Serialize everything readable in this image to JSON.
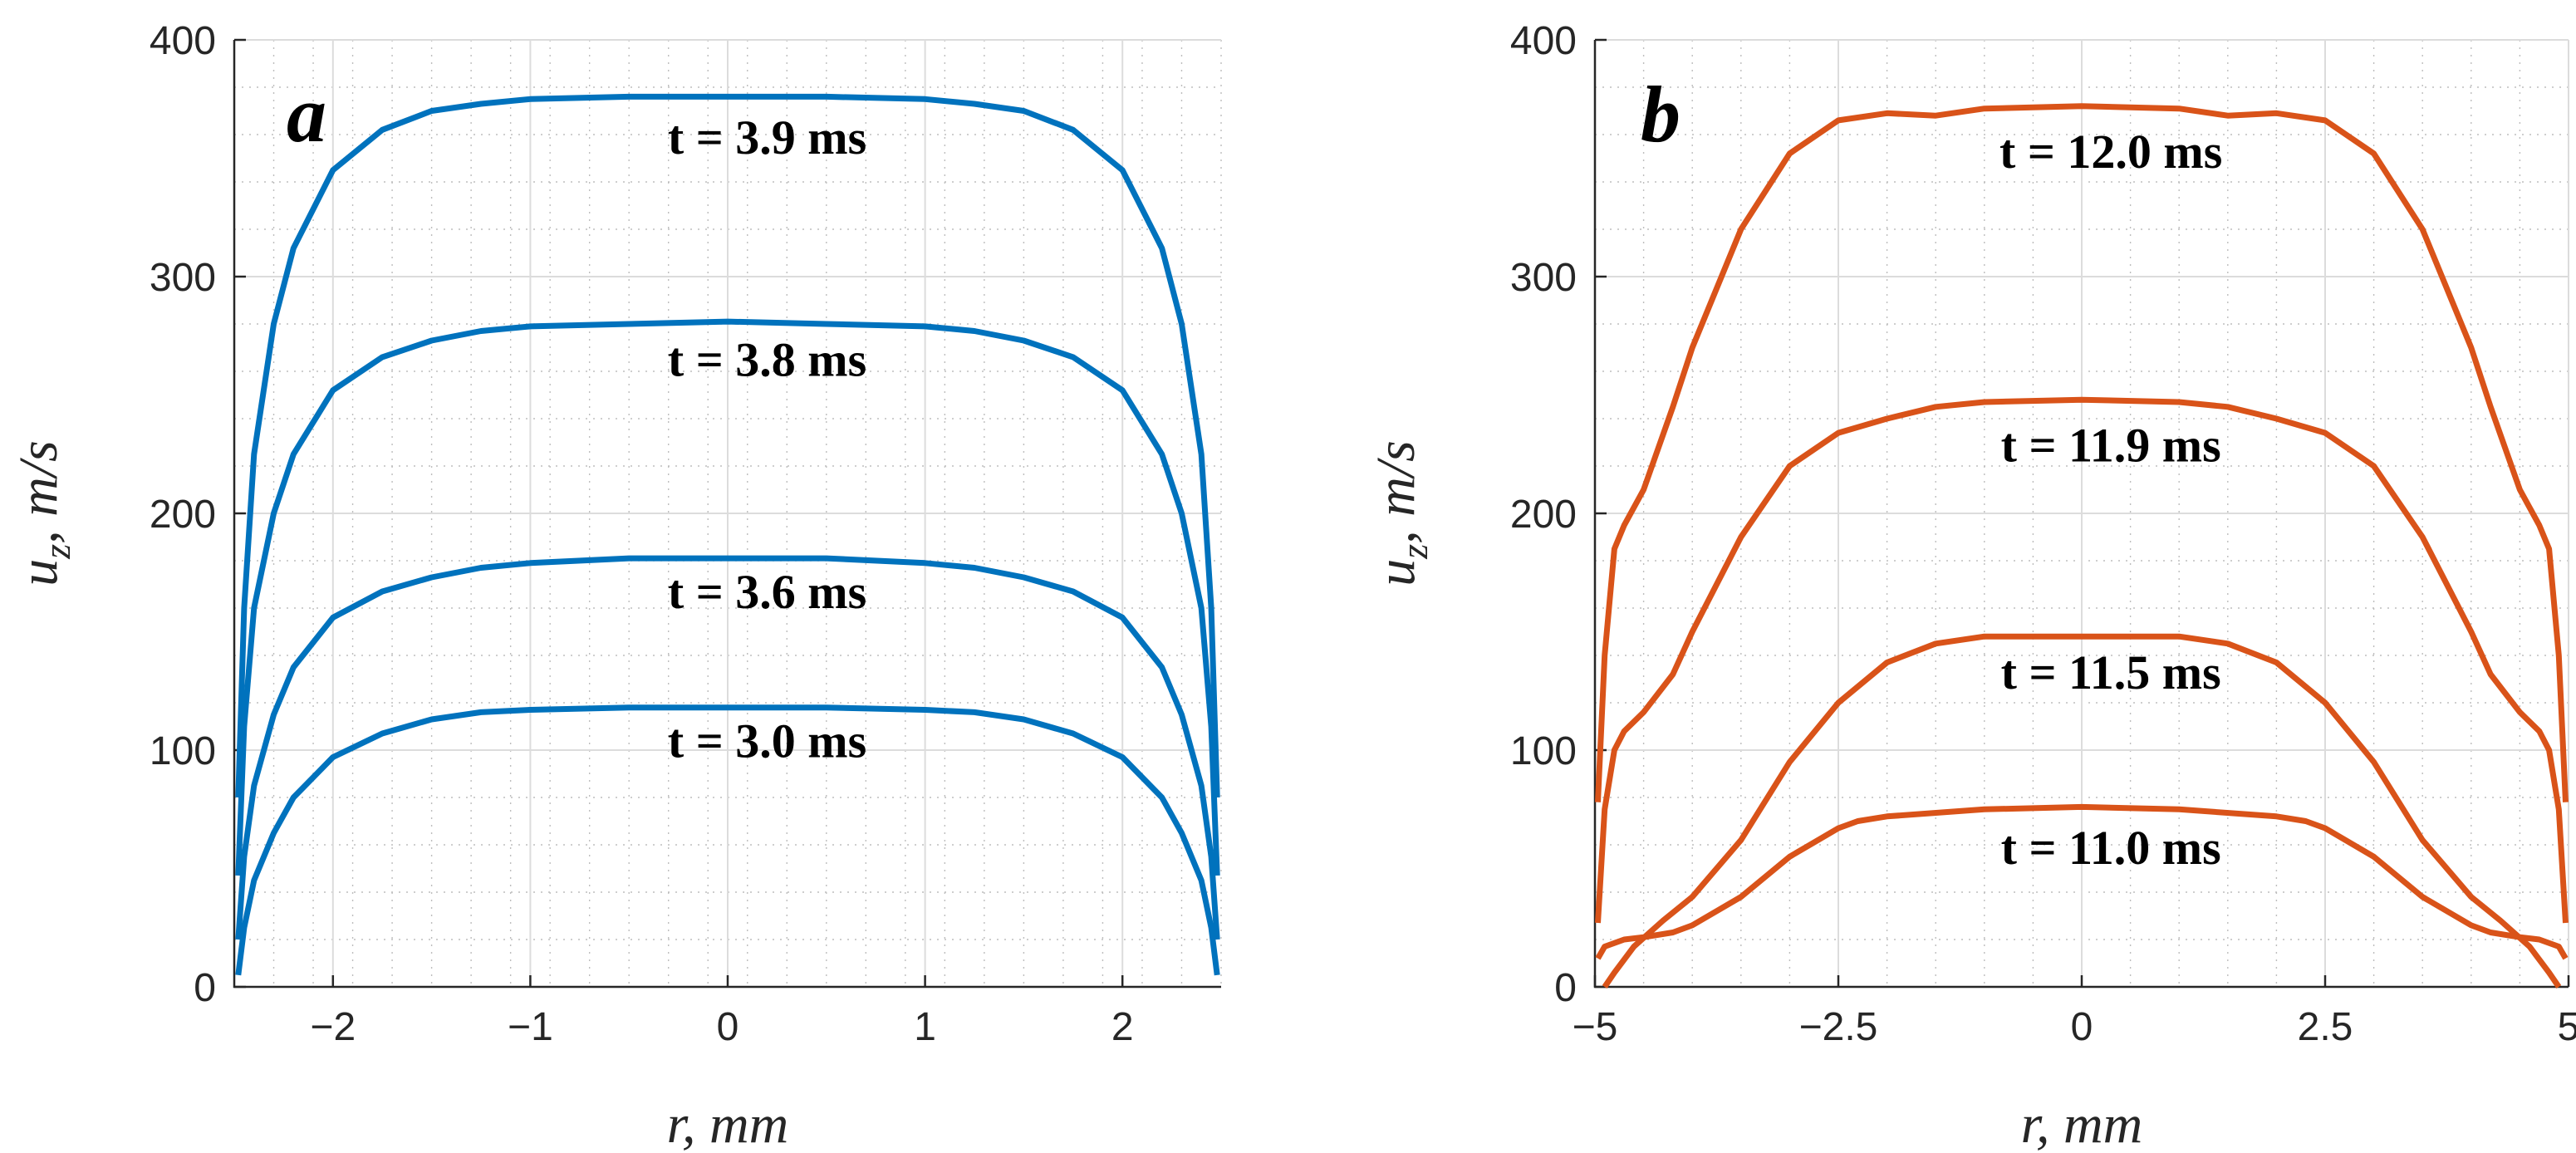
{
  "chart_data": [
    {
      "type": "line",
      "panel": "a",
      "xlabel": "r, mm",
      "ylabel": "u_z, m/s",
      "ylabel_main": "u",
      "ylabel_sub": "z",
      "ylabel_units": ", m/s",
      "xlim": [
        -2.5,
        2.5
      ],
      "ylim": [
        0,
        400
      ],
      "xticks": [
        -2,
        -1,
        0,
        1,
        2
      ],
      "xtick_labels": [
        "−2",
        "−1",
        "0",
        "1",
        "2"
      ],
      "yticks": [
        0,
        100,
        200,
        300,
        400
      ],
      "ytick_labels": [
        "0",
        "100",
        "200",
        "300",
        "400"
      ],
      "grid": true,
      "color": "#0072BD",
      "series": [
        {
          "name": "t = 3.9 ms",
          "label_at": [
            0.2,
            352
          ],
          "x": [
            -2.48,
            -2.45,
            -2.4,
            -2.3,
            -2.2,
            -2.0,
            -1.75,
            -1.5,
            -1.25,
            -1.0,
            -0.5,
            0,
            0.5,
            1.0,
            1.25,
            1.5,
            1.75,
            2.0,
            2.2,
            2.3,
            2.4,
            2.45,
            2.48
          ],
          "y": [
            80,
            160,
            225,
            280,
            312,
            345,
            362,
            370,
            373,
            375,
            376,
            376,
            376,
            375,
            373,
            370,
            362,
            345,
            312,
            280,
            225,
            160,
            80
          ]
        },
        {
          "name": "t = 3.8 ms",
          "label_at": [
            0.2,
            258
          ],
          "x": [
            -2.48,
            -2.45,
            -2.4,
            -2.3,
            -2.2,
            -2.0,
            -1.75,
            -1.5,
            -1.25,
            -1.0,
            -0.5,
            0,
            0.5,
            1.0,
            1.25,
            1.5,
            1.75,
            2.0,
            2.2,
            2.3,
            2.4,
            2.45,
            2.48
          ],
          "y": [
            47,
            110,
            160,
            200,
            225,
            252,
            266,
            273,
            277,
            279,
            280,
            281,
            280,
            279,
            277,
            273,
            266,
            252,
            225,
            200,
            160,
            110,
            47
          ]
        },
        {
          "name": "t = 3.6 ms",
          "label_at": [
            0.2,
            160
          ],
          "x": [
            -2.48,
            -2.45,
            -2.4,
            -2.3,
            -2.2,
            -2.0,
            -1.75,
            -1.5,
            -1.25,
            -1.0,
            -0.5,
            0,
            0.5,
            1.0,
            1.25,
            1.5,
            1.75,
            2.0,
            2.2,
            2.3,
            2.4,
            2.45,
            2.48
          ],
          "y": [
            20,
            55,
            85,
            115,
            135,
            156,
            167,
            173,
            177,
            179,
            181,
            181,
            181,
            179,
            177,
            173,
            167,
            156,
            135,
            115,
            85,
            55,
            20
          ]
        },
        {
          "name": "t = 3.0 ms",
          "label_at": [
            0.2,
            97
          ],
          "x": [
            -2.48,
            -2.45,
            -2.4,
            -2.3,
            -2.2,
            -2.0,
            -1.75,
            -1.5,
            -1.25,
            -1.0,
            -0.5,
            0,
            0.5,
            1.0,
            1.25,
            1.5,
            1.75,
            2.0,
            2.2,
            2.3,
            2.4,
            2.45,
            2.48
          ],
          "y": [
            5,
            25,
            45,
            65,
            80,
            97,
            107,
            113,
            116,
            117,
            118,
            118,
            118,
            117,
            116,
            113,
            107,
            97,
            80,
            65,
            45,
            25,
            5
          ]
        }
      ]
    },
    {
      "type": "line",
      "panel": "b",
      "xlabel": "r, mm",
      "ylabel": "u_z, m/s",
      "ylabel_main": "u",
      "ylabel_sub": "z",
      "ylabel_units": ", m/s",
      "xlim": [
        -5,
        5
      ],
      "ylim": [
        0,
        400
      ],
      "xticks": [
        -5,
        -2.5,
        0,
        2.5,
        5
      ],
      "xtick_labels": [
        "−5",
        "−2.5",
        "0",
        "2.5",
        "5"
      ],
      "yticks": [
        0,
        100,
        200,
        300,
        400
      ],
      "ytick_labels": [
        "0",
        "100",
        "200",
        "300",
        "400"
      ],
      "grid": true,
      "color": "#D95319",
      "series": [
        {
          "name": "t = 12.0 ms",
          "label_at": [
            0.3,
            346
          ],
          "x": [
            -4.97,
            -4.9,
            -4.8,
            -4.7,
            -4.5,
            -4.2,
            -4.0,
            -3.5,
            -3.0,
            -2.5,
            -2.0,
            -1.5,
            -1.0,
            0,
            1.0,
            1.5,
            2.0,
            2.5,
            3.0,
            3.5,
            4.0,
            4.2,
            4.5,
            4.7,
            4.8,
            4.9,
            4.97
          ],
          "y": [
            78,
            140,
            185,
            195,
            210,
            245,
            270,
            320,
            352,
            366,
            369,
            368,
            371,
            372,
            371,
            368,
            369,
            366,
            352,
            320,
            270,
            245,
            210,
            195,
            185,
            140,
            78
          ]
        },
        {
          "name": "t = 11.9 ms",
          "label_at": [
            0.3,
            222
          ],
          "x": [
            -4.97,
            -4.9,
            -4.8,
            -4.7,
            -4.5,
            -4.2,
            -4.0,
            -3.5,
            -3.0,
            -2.5,
            -2.0,
            -1.5,
            -1.0,
            0,
            1.0,
            1.5,
            2.0,
            2.5,
            3.0,
            3.5,
            4.0,
            4.2,
            4.5,
            4.7,
            4.8,
            4.9,
            4.97
          ],
          "y": [
            27,
            75,
            100,
            108,
            116,
            132,
            150,
            190,
            220,
            234,
            240,
            245,
            247,
            248,
            247,
            245,
            240,
            234,
            220,
            190,
            150,
            132,
            116,
            108,
            100,
            75,
            27
          ]
        },
        {
          "name": "t = 11.5 ms",
          "label_at": [
            0.3,
            126
          ],
          "x": [
            -4.9,
            -4.8,
            -4.6,
            -4.3,
            -4.0,
            -3.5,
            -3.0,
            -2.5,
            -2.0,
            -1.5,
            -1.0,
            0,
            1.0,
            1.5,
            2.0,
            2.5,
            3.0,
            3.5,
            4.0,
            4.3,
            4.6,
            4.8,
            4.9
          ],
          "y": [
            0,
            6,
            17,
            28,
            38,
            62,
            95,
            120,
            137,
            145,
            148,
            148,
            148,
            145,
            137,
            120,
            95,
            62,
            38,
            28,
            17,
            6,
            0
          ]
        },
        {
          "name": "t = 11.0 ms",
          "label_at": [
            0.3,
            52
          ],
          "x": [
            -4.97,
            -4.9,
            -4.7,
            -4.5,
            -4.2,
            -4.0,
            -3.5,
            -3.0,
            -2.5,
            -2.3,
            -2.0,
            -1.0,
            0,
            1.0,
            2.0,
            2.3,
            2.5,
            3.0,
            3.5,
            4.0,
            4.2,
            4.5,
            4.7,
            4.9,
            4.97
          ],
          "y": [
            12,
            17,
            20,
            21,
            23,
            26,
            38,
            55,
            67,
            70,
            72,
            75,
            76,
            75,
            72,
            70,
            67,
            55,
            38,
            26,
            23,
            21,
            20,
            17,
            12
          ]
        }
      ]
    }
  ]
}
